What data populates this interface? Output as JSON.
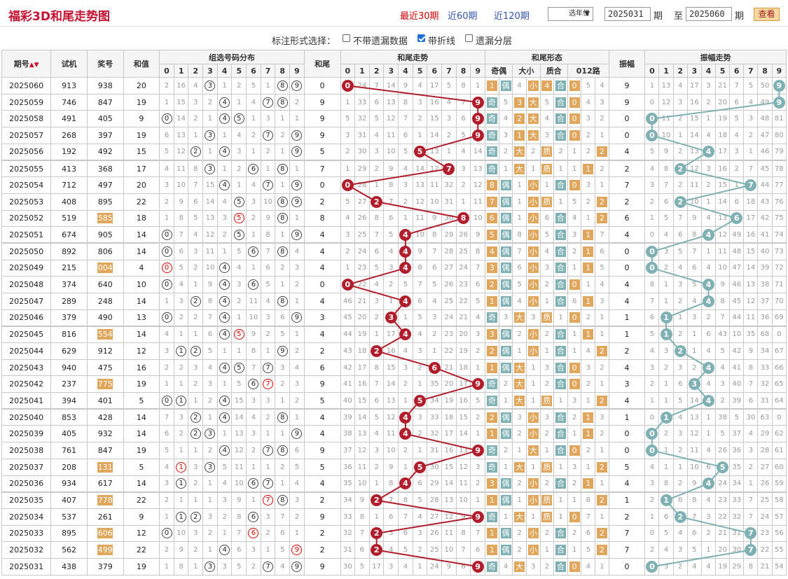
{
  "header": {
    "title": "福彩3D和尾走势图",
    "tabs": [
      "最近30期",
      "近60期",
      "近120期"
    ],
    "active_tab": 0,
    "year_select": "选年份",
    "from": "2025031",
    "from_suffix": "期",
    "to_label": "至",
    "to": "2025060",
    "to_suffix": "期",
    "query": "查看"
  },
  "options": {
    "label": "标注形式选择：",
    "items": [
      {
        "label": "不带遗漏数据",
        "checked": false
      },
      {
        "label": "带折线",
        "checked": true
      },
      {
        "label": "遗漏分层",
        "checked": false
      }
    ]
  },
  "columns": {
    "period": "期号",
    "test": "试机",
    "prize": "奖号",
    "sum": "和值",
    "dist": "组选号码分布",
    "tail": "和尾",
    "trend": "和尾走势",
    "form": "和尾形态",
    "amp": "振幅",
    "amptrend": "振幅走势",
    "parity": "奇偶",
    "size": "大小",
    "prime": "质合",
    "route": "012路",
    "digits": [
      "0",
      "1",
      "2",
      "3",
      "4",
      "5",
      "6",
      "7",
      "8",
      "9"
    ]
  },
  "colors": {
    "ball_red": "#b21d2b",
    "ball_teal": "#7fb1b4",
    "orange": "#e0a65c"
  },
  "rows": [
    {
      "p": "2025060",
      "t": "913",
      "n": "938",
      "s": "20",
      "h": "0",
      "a": "9",
      "nh": false
    },
    {
      "p": "2025059",
      "t": "746",
      "n": "847",
      "s": "19",
      "h": "9",
      "a": "9",
      "nh": false
    },
    {
      "p": "2025058",
      "t": "491",
      "n": "405",
      "s": "9",
      "h": "9",
      "a": "0",
      "nh": false
    },
    {
      "p": "2025057",
      "t": "268",
      "n": "397",
      "s": "19",
      "h": "9",
      "a": "0",
      "nh": false
    },
    {
      "p": "2025056",
      "t": "192",
      "n": "492",
      "s": "15",
      "h": "5",
      "a": "4",
      "nh": false
    },
    {
      "p": "2025055",
      "t": "413",
      "n": "368",
      "s": "17",
      "h": "7",
      "a": "2",
      "nh": false
    },
    {
      "p": "2025054",
      "t": "712",
      "n": "497",
      "s": "20",
      "h": "0",
      "a": "7",
      "nh": false
    },
    {
      "p": "2025053",
      "t": "408",
      "n": "895",
      "s": "22",
      "h": "2",
      "a": "2",
      "nh": false
    },
    {
      "p": "2025052",
      "t": "519",
      "n": "585",
      "s": "18",
      "h": "8",
      "a": "6",
      "nh": true
    },
    {
      "p": "2025051",
      "t": "674",
      "n": "905",
      "s": "14",
      "h": "4",
      "a": "4",
      "nh": false
    },
    {
      "p": "2025050",
      "t": "892",
      "n": "806",
      "s": "14",
      "h": "4",
      "a": "0",
      "nh": false
    },
    {
      "p": "2025049",
      "t": "215",
      "n": "004",
      "s": "4",
      "h": "4",
      "a": "0",
      "nh": true
    },
    {
      "p": "2025048",
      "t": "374",
      "n": "640",
      "s": "10",
      "h": "0",
      "a": "4",
      "nh": false
    },
    {
      "p": "2025047",
      "t": "289",
      "n": "248",
      "s": "14",
      "h": "4",
      "a": "4",
      "nh": false
    },
    {
      "p": "2025046",
      "t": "379",
      "n": "490",
      "s": "13",
      "h": "3",
      "a": "1",
      "nh": false
    },
    {
      "p": "2025045",
      "t": "816",
      "n": "554",
      "s": "14",
      "h": "4",
      "a": "1",
      "nh": true
    },
    {
      "p": "2025044",
      "t": "629",
      "n": "912",
      "s": "12",
      "h": "2",
      "a": "2",
      "nh": false
    },
    {
      "p": "2025043",
      "t": "940",
      "n": "475",
      "s": "16",
      "h": "6",
      "a": "4",
      "nh": false
    },
    {
      "p": "2025042",
      "t": "237",
      "n": "775",
      "s": "19",
      "h": "9",
      "a": "3",
      "nh": true
    },
    {
      "p": "2025041",
      "t": "394",
      "n": "401",
      "s": "5",
      "h": "5",
      "a": "4",
      "nh": false
    },
    {
      "p": "2025040",
      "t": "853",
      "n": "428",
      "s": "14",
      "h": "4",
      "a": "1",
      "nh": false
    },
    {
      "p": "2025039",
      "t": "405",
      "n": "932",
      "s": "14",
      "h": "4",
      "a": "0",
      "nh": false
    },
    {
      "p": "2025038",
      "t": "761",
      "n": "847",
      "s": "19",
      "h": "9",
      "a": "0",
      "nh": false
    },
    {
      "p": "2025037",
      "t": "208",
      "n": "131",
      "s": "5",
      "h": "5",
      "a": "5",
      "nh": true
    },
    {
      "p": "2025036",
      "t": "934",
      "n": "617",
      "s": "14",
      "h": "4",
      "a": "4",
      "nh": false
    },
    {
      "p": "2025035",
      "t": "407",
      "n": "778",
      "s": "22",
      "h": "2",
      "a": "1",
      "nh": true
    },
    {
      "p": "2025034",
      "t": "537",
      "n": "261",
      "s": "9",
      "h": "9",
      "a": "2",
      "nh": false
    },
    {
      "p": "2025033",
      "t": "895",
      "n": "606",
      "s": "12",
      "h": "2",
      "a": "7",
      "nh": true
    },
    {
      "p": "2025032",
      "t": "562",
      "n": "499",
      "s": "22",
      "h": "2",
      "a": "7",
      "nh": true
    },
    {
      "p": "2025031",
      "t": "438",
      "n": "379",
      "s": "19",
      "h": "9",
      "a": "0",
      "nh": false
    }
  ],
  "dist_miss": [
    [
      2,
      16,
      4,
      "3",
      1,
      2,
      5,
      1,
      "8",
      "9"
    ],
    [
      1,
      15,
      3,
      2,
      "4",
      1,
      4,
      "7",
      "8",
      2
    ],
    [
      "0",
      14,
      2,
      1,
      "4",
      "5",
      1,
      3,
      1,
      1
    ],
    [
      6,
      13,
      1,
      "3",
      1,
      4,
      2,
      "7",
      2,
      "9"
    ],
    [
      5,
      12,
      "2",
      1,
      "4",
      3,
      1,
      2,
      1,
      "9"
    ],
    [
      4,
      11,
      8,
      "3",
      1,
      2,
      "6",
      1,
      "8",
      1
    ],
    [
      3,
      10,
      7,
      15,
      "4",
      1,
      4,
      "7",
      1,
      "9"
    ],
    [
      2,
      9,
      6,
      14,
      4,
      "5",
      3,
      10,
      "8",
      "9"
    ],
    [
      1,
      8,
      5,
      13,
      3,
      "5r",
      2,
      9,
      "8",
      1
    ],
    [
      "0",
      7,
      4,
      12,
      2,
      "5",
      1,
      8,
      1,
      "9"
    ],
    [
      "0",
      6,
      3,
      11,
      1,
      5,
      "6",
      7,
      "8",
      4
    ],
    [
      "0r",
      5,
      2,
      10,
      "4",
      4,
      1,
      6,
      2,
      3
    ],
    [
      "0",
      4,
      1,
      9,
      "4",
      3,
      "6",
      5,
      1,
      2
    ],
    [
      1,
      3,
      "2",
      8,
      "4",
      2,
      11,
      4,
      "8",
      1
    ],
    [
      "0",
      2,
      2,
      7,
      "4",
      1,
      10,
      3,
      6,
      "9"
    ],
    [
      4,
      1,
      1,
      6,
      "4",
      "5r",
      9,
      2,
      5,
      1
    ],
    [
      3,
      "1",
      "2",
      5,
      1,
      1,
      8,
      1,
      "9",
      2
    ],
    [
      2,
      2,
      3,
      4,
      "4",
      "5",
      7,
      "7",
      3,
      4
    ],
    [
      1,
      1,
      2,
      3,
      1,
      5,
      "6",
      "7r",
      2,
      3
    ],
    [
      "0",
      "1",
      1,
      2,
      "4",
      15,
      3,
      3,
      1,
      2
    ],
    [
      7,
      3,
      "2",
      1,
      "4",
      14,
      4,
      2,
      "8",
      1
    ],
    [
      6,
      2,
      "2",
      "3",
      1,
      13,
      3,
      1,
      1,
      "9"
    ],
    [
      5,
      1,
      1,
      2,
      "4",
      12,
      2,
      "7",
      "8",
      6
    ],
    [
      4,
      "1r",
      3,
      "3",
      5,
      11,
      1,
      1,
      2,
      5
    ],
    [
      3,
      "1",
      2,
      1,
      4,
      10,
      "6",
      "7",
      1,
      4
    ],
    [
      2,
      1,
      1,
      1,
      3,
      9,
      1,
      "7r",
      "8",
      3
    ],
    [
      1,
      "1",
      "2",
      3,
      2,
      8,
      "6",
      3,
      7,
      2
    ],
    [
      "0",
      10,
      3,
      2,
      1,
      7,
      "6r",
      2,
      6,
      1
    ],
    [
      2,
      9,
      2,
      1,
      "4",
      6,
      3,
      1,
      5,
      "9r"
    ],
    [
      1,
      8,
      1,
      "3",
      3,
      5,
      2,
      "7",
      4,
      "9"
    ]
  ],
  "trend_miss": [
    [
      0,
      24,
      7,
      14,
      9,
      4,
      17,
      5,
      8,
      1
    ],
    [
      1,
      33,
      6,
      13,
      8,
      3,
      16,
      4,
      7,
      0
    ],
    [
      5,
      32,
      5,
      12,
      7,
      2,
      15,
      3,
      6,
      0
    ],
    [
      3,
      31,
      4,
      11,
      6,
      1,
      14,
      2,
      5,
      0
    ],
    [
      2,
      30,
      3,
      10,
      5,
      0,
      13,
      1,
      4,
      14
    ],
    [
      1,
      29,
      2,
      9,
      4,
      14,
      12,
      0,
      3,
      13
    ],
    [
      0,
      28,
      1,
      8,
      3,
      13,
      11,
      32,
      2,
      12
    ],
    [
      5,
      27,
      0,
      7,
      2,
      12,
      10,
      31,
      1,
      11
    ],
    [
      4,
      26,
      8,
      6,
      1,
      11,
      9,
      30,
      0,
      10
    ],
    [
      3,
      25,
      7,
      5,
      0,
      10,
      8,
      29,
      26,
      9
    ],
    [
      2,
      24,
      6,
      4,
      0,
      9,
      7,
      28,
      25,
      8
    ],
    [
      1,
      23,
      5,
      3,
      0,
      8,
      6,
      27,
      24,
      7
    ],
    [
      0,
      22,
      4,
      2,
      5,
      7,
      5,
      26,
      23,
      6
    ],
    [
      46,
      21,
      3,
      1,
      0,
      6,
      4,
      25,
      22,
      5
    ],
    [
      45,
      20,
      2,
      0,
      1,
      5,
      3,
      24,
      21,
      4
    ],
    [
      44,
      19,
      1,
      17,
      0,
      4,
      2,
      23,
      20,
      3
    ],
    [
      43,
      18,
      0,
      16,
      4,
      3,
      1,
      22,
      19,
      2
    ],
    [
      42,
      17,
      8,
      15,
      3,
      2,
      0,
      21,
      18,
      1
    ],
    [
      41,
      16,
      7,
      14,
      2,
      1,
      35,
      20,
      17,
      0
    ],
    [
      40,
      15,
      6,
      13,
      1,
      0,
      34,
      19,
      16,
      5
    ],
    [
      39,
      14,
      5,
      12,
      0,
      3,
      33,
      18,
      15,
      2
    ],
    [
      38,
      13,
      4,
      11,
      0,
      2,
      32,
      17,
      14,
      1
    ],
    [
      37,
      12,
      3,
      10,
      2,
      1,
      31,
      16,
      13,
      0
    ],
    [
      36,
      11,
      2,
      9,
      1,
      0,
      30,
      15,
      12,
      3
    ],
    [
      35,
      10,
      1,
      8,
      0,
      6,
      29,
      14,
      11,
      2
    ],
    [
      34,
      9,
      0,
      7,
      8,
      5,
      28,
      13,
      10,
      1
    ],
    [
      33,
      8,
      1,
      6,
      7,
      4,
      27,
      12,
      9,
      0
    ],
    [
      32,
      7,
      0,
      5,
      6,
      3,
      26,
      11,
      8,
      7
    ],
    [
      31,
      6,
      0,
      4,
      5,
      2,
      25,
      10,
      7,
      6
    ],
    [
      30,
      5,
      17,
      3,
      4,
      1,
      24,
      9,
      6,
      0
    ]
  ],
  "form_miss": [
    [
      "1",
      "偶",
      4,
      "小",
      "4",
      "合",
      "0",
      5,
      4
    ],
    [
      "奇",
      5,
      "3",
      "大",
      5,
      "合",
      "0",
      4,
      3
    ],
    [
      "奇",
      4,
      "2",
      "大",
      4,
      "合",
      "0",
      3,
      2
    ],
    [
      "奇",
      3,
      "1",
      "大",
      3,
      "合",
      "0",
      2,
      1
    ],
    [
      "奇",
      2,
      "大",
      2,
      "质",
      2,
      1,
      2,
      "2"
    ],
    [
      "奇",
      1,
      "大",
      1,
      "质",
      1,
      1,
      "1",
      2
    ],
    [
      "8",
      "偶",
      1,
      "小",
      1,
      "合",
      "0",
      3,
      1
    ],
    [
      "7",
      "偶",
      1,
      "小",
      "质",
      1,
      5,
      2,
      "2"
    ],
    [
      "6",
      "偶",
      1,
      "小",
      6,
      "合",
      4,
      1,
      "2"
    ],
    [
      "5",
      "偶",
      8,
      "小",
      5,
      "合",
      3,
      "1",
      7
    ],
    [
      "4",
      "偶",
      7,
      "小",
      4,
      "合",
      2,
      "1",
      6
    ],
    [
      "3",
      "偶",
      6,
      "小",
      3,
      "合",
      1,
      "1",
      5
    ],
    [
      "2",
      "偶",
      5,
      "小",
      2,
      "合",
      "0",
      1,
      4
    ],
    [
      "1",
      "偶",
      4,
      "小",
      1,
      "合",
      6,
      "1",
      3
    ],
    [
      "奇",
      3,
      "大",
      3,
      "质",
      1,
      "0",
      2,
      1
    ],
    [
      "3",
      "偶",
      2,
      "小",
      2,
      "合",
      1,
      "1",
      1
    ],
    [
      "2",
      "偶",
      1,
      "小",
      1,
      "合",
      1,
      4,
      "2"
    ],
    [
      "1",
      "偶",
      "大",
      1,
      3,
      "合",
      "0",
      3,
      2
    ],
    [
      "奇",
      2,
      "大",
      1,
      2,
      "合",
      "0",
      2,
      1
    ],
    [
      "奇",
      1,
      "大",
      1,
      "质",
      1,
      3,
      1,
      "2"
    ],
    [
      "2",
      "偶",
      3,
      "小",
      3,
      "合",
      2,
      "1",
      3
    ],
    [
      "1",
      "偶",
      2,
      "小",
      2,
      "合",
      1,
      "1",
      2
    ],
    [
      "奇",
      2,
      1,
      "大",
      1,
      "合",
      "0",
      2,
      1
    ],
    [
      "奇",
      1,
      "大",
      1,
      "质",
      1,
      3,
      1,
      "2"
    ],
    [
      "3",
      "偶",
      2,
      "小",
      2,
      "合",
      2,
      "1",
      1
    ],
    [
      "1",
      "偶",
      1,
      "小",
      "质",
      1,
      1,
      8,
      "2"
    ],
    [
      "奇",
      1,
      "大",
      1,
      "质",
      1,
      "0",
      7,
      1
    ],
    [
      "1",
      "偶",
      2,
      "小",
      2,
      "合",
      2,
      6,
      "2"
    ],
    [
      "1",
      "偶",
      2,
      "小",
      1,
      "合",
      1,
      5,
      "2"
    ],
    [
      "奇",
      4,
      "大",
      3,
      2,
      "合",
      "0",
      4,
      1
    ]
  ],
  "amp_miss": [
    [
      1,
      13,
      4,
      17,
      3,
      21,
      7,
      5,
      50,
      9
    ],
    [
      0,
      12,
      3,
      16,
      2,
      20,
      6,
      4,
      49,
      82
    ],
    [
      0,
      11,
      2,
      15,
      1,
      19,
      5,
      3,
      48,
      81
    ],
    [
      6,
      10,
      1,
      14,
      4,
      18,
      4,
      2,
      47,
      80
    ],
    [
      5,
      9,
      2,
      13,
      4,
      17,
      3,
      1,
      46,
      79
    ],
    [
      4,
      8,
      1,
      12,
      3,
      16,
      2,
      7,
      45,
      78
    ],
    [
      3,
      7,
      2,
      11,
      2,
      15,
      1,
      19,
      44,
      77
    ],
    [
      2,
      6,
      8,
      10,
      1,
      14,
      6,
      18,
      43,
      76
    ],
    [
      1,
      5,
      7,
      9,
      4,
      13,
      50,
      17,
      42,
      75
    ],
    [
      0,
      4,
      6,
      8,
      2,
      12,
      49,
      16,
      41,
      74
    ],
    [
      0,
      3,
      5,
      7,
      1,
      11,
      48,
      15,
      40,
      73
    ],
    [
      9,
      2,
      4,
      6,
      4,
      10,
      47,
      14,
      39,
      72
    ],
    [
      8,
      1,
      3,
      5,
      4,
      9,
      46,
      13,
      38,
      71
    ],
    [
      7,
      1,
      2,
      4,
      3,
      8,
      45,
      12,
      37,
      70
    ],
    [
      6,
      1,
      1,
      3,
      2,
      7,
      44,
      11,
      36,
      69
    ],
    [
      5,
      4,
      2,
      1,
      6,
      43,
      10,
      35,
      68,
      0
    ],
    [
      4,
      3,
      8,
      1,
      4,
      5,
      42,
      9,
      34,
      67
    ],
    [
      3,
      2,
      3,
      2,
      3,
      4,
      41,
      8,
      33,
      66
    ],
    [
      2,
      1,
      6,
      15,
      4,
      3,
      40,
      7,
      32,
      65
    ],
    [
      1,
      1,
      5,
      14,
      3,
      2,
      39,
      6,
      31,
      64
    ],
    [
      0,
      3,
      4,
      13,
      1,
      38,
      5,
      30,
      63,
      0
    ],
    [
      6,
      2,
      3,
      12,
      1,
      5,
      37,
      4,
      29,
      62
    ],
    [
      5,
      1,
      2,
      11,
      4,
      26,
      36,
      3,
      28,
      61
    ],
    [
      4,
      1,
      1,
      10,
      6,
      25,
      35,
      2,
      27,
      60
    ],
    [
      3,
      8,
      2,
      9,
      5,
      24,
      34,
      1,
      26,
      59
    ],
    [
      2,
      7,
      6,
      8,
      4,
      23,
      33,
      7,
      25,
      58
    ],
    [
      1,
      6,
      5,
      7,
      3,
      22,
      32,
      7,
      24,
      57
    ],
    [
      0,
      5,
      4,
      6,
      2,
      21,
      31,
      1,
      23,
      56
    ],
    [
      2,
      4,
      3,
      5,
      1,
      20,
      30,
      7,
      22,
      55
    ],
    [
      1,
      3,
      2,
      4,
      4,
      19,
      29,
      8,
      21,
      54
    ]
  ]
}
